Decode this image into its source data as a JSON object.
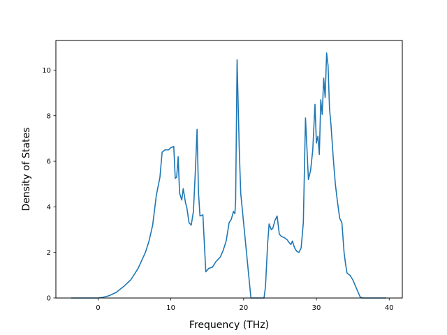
{
  "chart_data": {
    "type": "line",
    "title": "",
    "xlabel": "Frequency (THz)",
    "ylabel": "Density of States",
    "xlim": [
      -5.8,
      41.8
    ],
    "ylim": [
      0,
      11.3
    ],
    "grid": false,
    "legend": "none",
    "xticks": [
      0,
      10,
      20,
      30,
      40
    ],
    "xtick_labels": [
      "0",
      "10",
      "20",
      "30",
      "40"
    ],
    "yticks": [
      0,
      2,
      4,
      6,
      8,
      10
    ],
    "ytick_labels": [
      "0",
      "2",
      "4",
      "6",
      "8",
      "10"
    ],
    "series": [
      {
        "color": "#1f77b4",
        "x": [
          -3.7,
          -2,
          0,
          0.5,
          1.5,
          2.5,
          3.5,
          4.5,
          5.5,
          6.5,
          7.0,
          7.5,
          8.0,
          8.5,
          8.8,
          9.2,
          9.7,
          10.0,
          10.4,
          10.6,
          10.8,
          11.0,
          11.2,
          11.5,
          11.7,
          12.0,
          12.2,
          12.5,
          12.8,
          13.1,
          13.4,
          13.6,
          13.8,
          14.0,
          14.4,
          14.8,
          15.2,
          15.7,
          16.2,
          16.8,
          17.2,
          17.6,
          18.0,
          18.3,
          18.6,
          18.8,
          18.9,
          19.1,
          19.4,
          19.6,
          21.0,
          22.8,
          23.0,
          23.3,
          23.5,
          23.8,
          24.0,
          24.3,
          24.6,
          24.9,
          25.2,
          25.6,
          26.0,
          26.2,
          26.5,
          26.7,
          27.0,
          27.3,
          27.6,
          27.9,
          28.2,
          28.5,
          28.9,
          29.2,
          29.5,
          29.8,
          30.0,
          30.2,
          30.4,
          30.6,
          30.8,
          31.0,
          31.2,
          31.4,
          31.6,
          31.8,
          32.0,
          32.3,
          32.6,
          32.9,
          33.2,
          33.5,
          33.8,
          34.0,
          34.2,
          34.6,
          35.0,
          35.4,
          36.0,
          36.3,
          37.0,
          39.6
        ],
        "y": [
          0,
          0,
          0,
          0.02,
          0.1,
          0.25,
          0.5,
          0.8,
          1.3,
          2.0,
          2.5,
          3.2,
          4.5,
          5.3,
          6.4,
          6.5,
          6.5,
          6.6,
          6.65,
          5.25,
          5.3,
          6.2,
          4.6,
          4.3,
          4.8,
          4.2,
          3.95,
          3.3,
          3.2,
          3.8,
          5.8,
          7.4,
          4.6,
          3.6,
          3.65,
          1.15,
          1.3,
          1.35,
          1.6,
          1.8,
          2.1,
          2.5,
          3.3,
          3.45,
          3.8,
          3.7,
          4.3,
          10.45,
          6.5,
          4.6,
          0,
          0,
          0.5,
          2.4,
          3.25,
          3.0,
          3.05,
          3.4,
          3.6,
          2.8,
          2.7,
          2.65,
          2.55,
          2.45,
          2.35,
          2.5,
          2.2,
          2.05,
          2.0,
          2.2,
          3.3,
          7.9,
          5.2,
          5.6,
          6.5,
          8.5,
          6.8,
          7.1,
          6.3,
          8.7,
          8.05,
          9.65,
          8.8,
          10.75,
          10.2,
          8.3,
          7.6,
          6.2,
          5.0,
          4.2,
          3.5,
          3.3,
          2.0,
          1.5,
          1.1,
          1.0,
          0.8,
          0.5,
          0.05,
          0,
          0,
          0
        ]
      }
    ]
  }
}
